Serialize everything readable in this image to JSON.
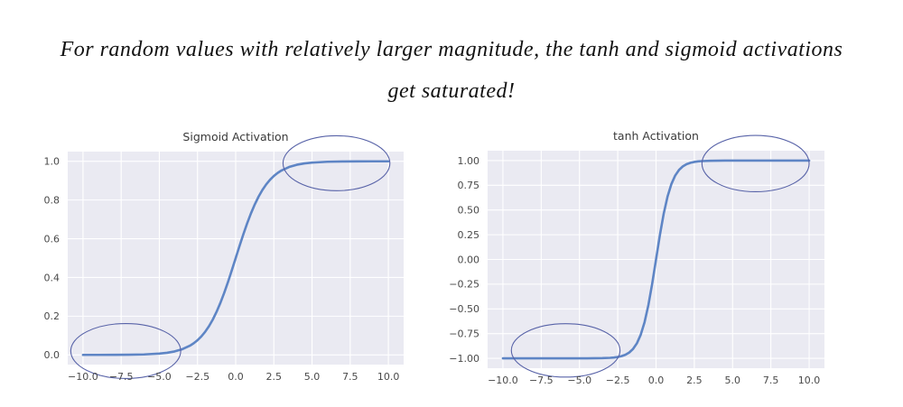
{
  "page": {
    "heading": {
      "line1": "For random values with relatively larger magnitude, the tanh and sigmoid activations",
      "line2": "get saturated!"
    }
  },
  "colors": {
    "page_bg": "#ffffff",
    "heading_text": "#121212",
    "plot_bg": "#eaeaf2",
    "grid": "#ffffff",
    "curve": "#5e85c5",
    "annotation": "#5863a8",
    "tick_label": "#494949",
    "chart_title": "#3a3a3a"
  },
  "chart_data": [
    {
      "type": "line",
      "title": "Sigmoid Activation",
      "xlabel": "",
      "ylabel": "",
      "xlim": [
        -11,
        11
      ],
      "ylim": [
        -0.05,
        1.05
      ],
      "grid": true,
      "legend": "none",
      "xticks": [
        -10,
        -7.5,
        -5,
        -2.5,
        0,
        2.5,
        5,
        7.5,
        10
      ],
      "xtick_labels": [
        "−10.0",
        "−7.5",
        "−5.0",
        "−2.5",
        "0.0",
        "2.5",
        "5.0",
        "7.5",
        "10.0"
      ],
      "yticks": [
        0,
        0.2,
        0.4,
        0.6,
        0.8,
        1.0
      ],
      "ytick_labels": [
        "0.0",
        "0.2",
        "0.4",
        "0.6",
        "0.8",
        "1.0"
      ],
      "x": [
        -10,
        -9,
        -8,
        -7,
        -6,
        -5,
        -4.5,
        -4,
        -3.5,
        -3,
        -2.75,
        -2.5,
        -2.25,
        -2,
        -1.75,
        -1.5,
        -1.25,
        -1,
        -0.75,
        -0.5,
        -0.25,
        0,
        0.25,
        0.5,
        0.75,
        1,
        1.25,
        1.5,
        1.75,
        2,
        2.25,
        2.5,
        2.75,
        3,
        3.5,
        4,
        4.5,
        5,
        6,
        7,
        8,
        9,
        10
      ],
      "series": [
        {
          "name": "sigmoid(x)",
          "values": [
            4.5e-05,
            0.000123,
            0.000335,
            0.000911,
            0.002473,
            0.006693,
            0.010987,
            0.017986,
            0.029312,
            0.047426,
            0.060087,
            0.075858,
            0.095349,
            0.119203,
            0.148047,
            0.182426,
            0.2227,
            0.268941,
            0.320821,
            0.377541,
            0.437823,
            0.5,
            0.562177,
            0.622459,
            0.679179,
            0.731059,
            0.7773,
            0.817574,
            0.851953,
            0.880797,
            0.904651,
            0.924142,
            0.939913,
            0.952574,
            0.970688,
            0.982014,
            0.989013,
            0.993307,
            0.997527,
            0.999089,
            0.999665,
            0.999877,
            0.999955
          ]
        }
      ],
      "annotations": [
        {
          "shape": "ellipse",
          "label": "saturated-high-region",
          "cx": 6.6,
          "cy": 0.99,
          "rx": 3.5,
          "ry": 0.142
        },
        {
          "shape": "ellipse",
          "label": "saturated-low-region",
          "cx": -7.2,
          "cy": 0.02,
          "rx": 3.6,
          "ry": 0.142
        }
      ]
    },
    {
      "type": "line",
      "title": "tanh Activation",
      "xlabel": "",
      "ylabel": "",
      "xlim": [
        -11,
        11
      ],
      "ylim": [
        -1.1,
        1.1
      ],
      "grid": true,
      "legend": "none",
      "xticks": [
        -10,
        -7.5,
        -5,
        -2.5,
        0,
        2.5,
        5,
        7.5,
        10
      ],
      "xtick_labels": [
        "−10.0",
        "−7.5",
        "−5.0",
        "−2.5",
        "0.0",
        "2.5",
        "5.0",
        "7.5",
        "10.0"
      ],
      "yticks": [
        -1,
        -0.75,
        -0.5,
        -0.25,
        0,
        0.25,
        0.5,
        0.75,
        1
      ],
      "ytick_labels": [
        "−1.00",
        "−0.75",
        "−0.50",
        "−0.25",
        "0.00",
        "0.25",
        "0.50",
        "0.75",
        "1.00"
      ],
      "x": [
        -10,
        -9,
        -8,
        -7,
        -6,
        -5,
        -4.5,
        -4,
        -3.5,
        -3,
        -2.75,
        -2.5,
        -2.25,
        -2,
        -1.75,
        -1.5,
        -1.25,
        -1,
        -0.75,
        -0.5,
        -0.25,
        0,
        0.25,
        0.5,
        0.75,
        1,
        1.25,
        1.5,
        1.75,
        2,
        2.25,
        2.5,
        2.75,
        3,
        3.5,
        4,
        4.5,
        5,
        6,
        7,
        8,
        9,
        10
      ],
      "series": [
        {
          "name": "tanh(x)",
          "values": [
            -1.0,
            -1.0,
            -1.0,
            -0.999998,
            -0.999988,
            -0.999909,
            -0.999753,
            -0.999329,
            -0.998178,
            -0.995055,
            -0.991861,
            -0.986614,
            -0.978026,
            -0.964028,
            -0.941376,
            -0.905148,
            -0.848284,
            -0.761594,
            -0.635149,
            -0.462117,
            -0.244919,
            0.0,
            0.244919,
            0.462117,
            0.635149,
            0.761594,
            0.848284,
            0.905148,
            0.941376,
            0.964028,
            0.978026,
            0.986614,
            0.991861,
            0.995055,
            0.998178,
            0.999329,
            0.999753,
            0.999909,
            0.999988,
            0.999998,
            1.0,
            1.0,
            1.0
          ]
        }
      ],
      "annotations": [
        {
          "shape": "ellipse",
          "label": "saturated-high-region",
          "cx": 6.5,
          "cy": 0.97,
          "rx": 3.5,
          "ry": 0.285
        },
        {
          "shape": "ellipse",
          "label": "saturated-low-region",
          "cx": -5.9,
          "cy": -0.92,
          "rx": 3.55,
          "ry": 0.27
        }
      ]
    }
  ]
}
